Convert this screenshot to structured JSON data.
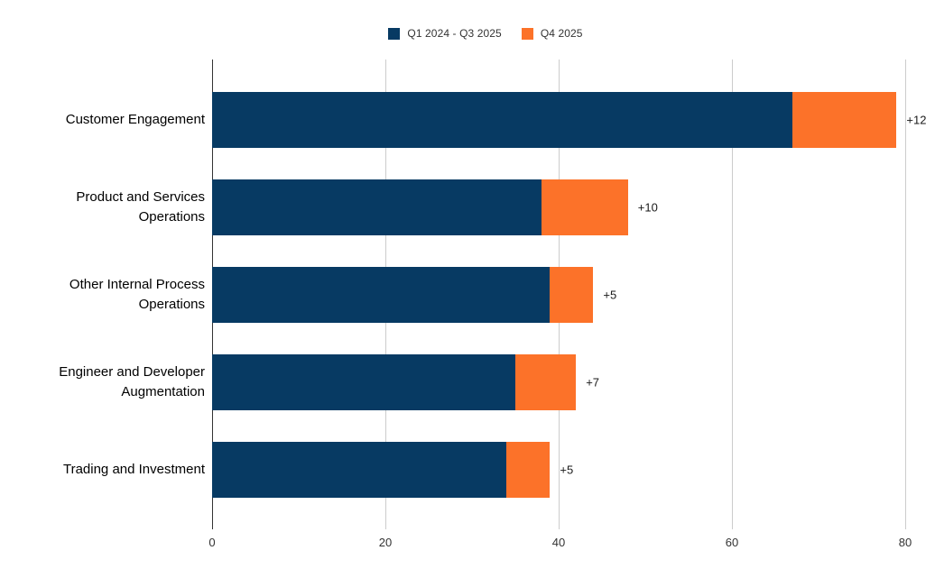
{
  "chart_data": {
    "type": "bar",
    "orientation": "horizontal",
    "stacked": true,
    "title": "",
    "xlabel": "",
    "ylabel": "",
    "categories": [
      "Customer Engagement",
      "Product and Services Operations",
      "Other Internal Process Operations",
      "Engineer and Developer Augmentation",
      "Trading and Investment"
    ],
    "series": [
      {
        "name": "Q1 2024 - Q3 2025",
        "color": "#073A63",
        "values": [
          67,
          38,
          39,
          35,
          34
        ]
      },
      {
        "name": "Q4 2025",
        "color": "#FC7229",
        "values": [
          12,
          10,
          5,
          7,
          5
        ]
      }
    ],
    "totals": [
      79,
      48,
      44,
      42,
      39
    ],
    "annotations": [
      "+12",
      "+10",
      "+5",
      "+7",
      "+5"
    ],
    "xticks": [
      0,
      20,
      40,
      60,
      80
    ],
    "xlim": [
      0,
      80
    ],
    "legend_position": "top",
    "grid": "vertical-only",
    "gridline_color": "#cccccc",
    "axis_line_color": "#333333",
    "background_color": "#ffffff"
  },
  "legend": {
    "items": [
      {
        "label": "Q1 2024 - Q3 2025",
        "color": "#073A63"
      },
      {
        "label": "Q4 2025",
        "color": "#FC7229"
      }
    ]
  }
}
